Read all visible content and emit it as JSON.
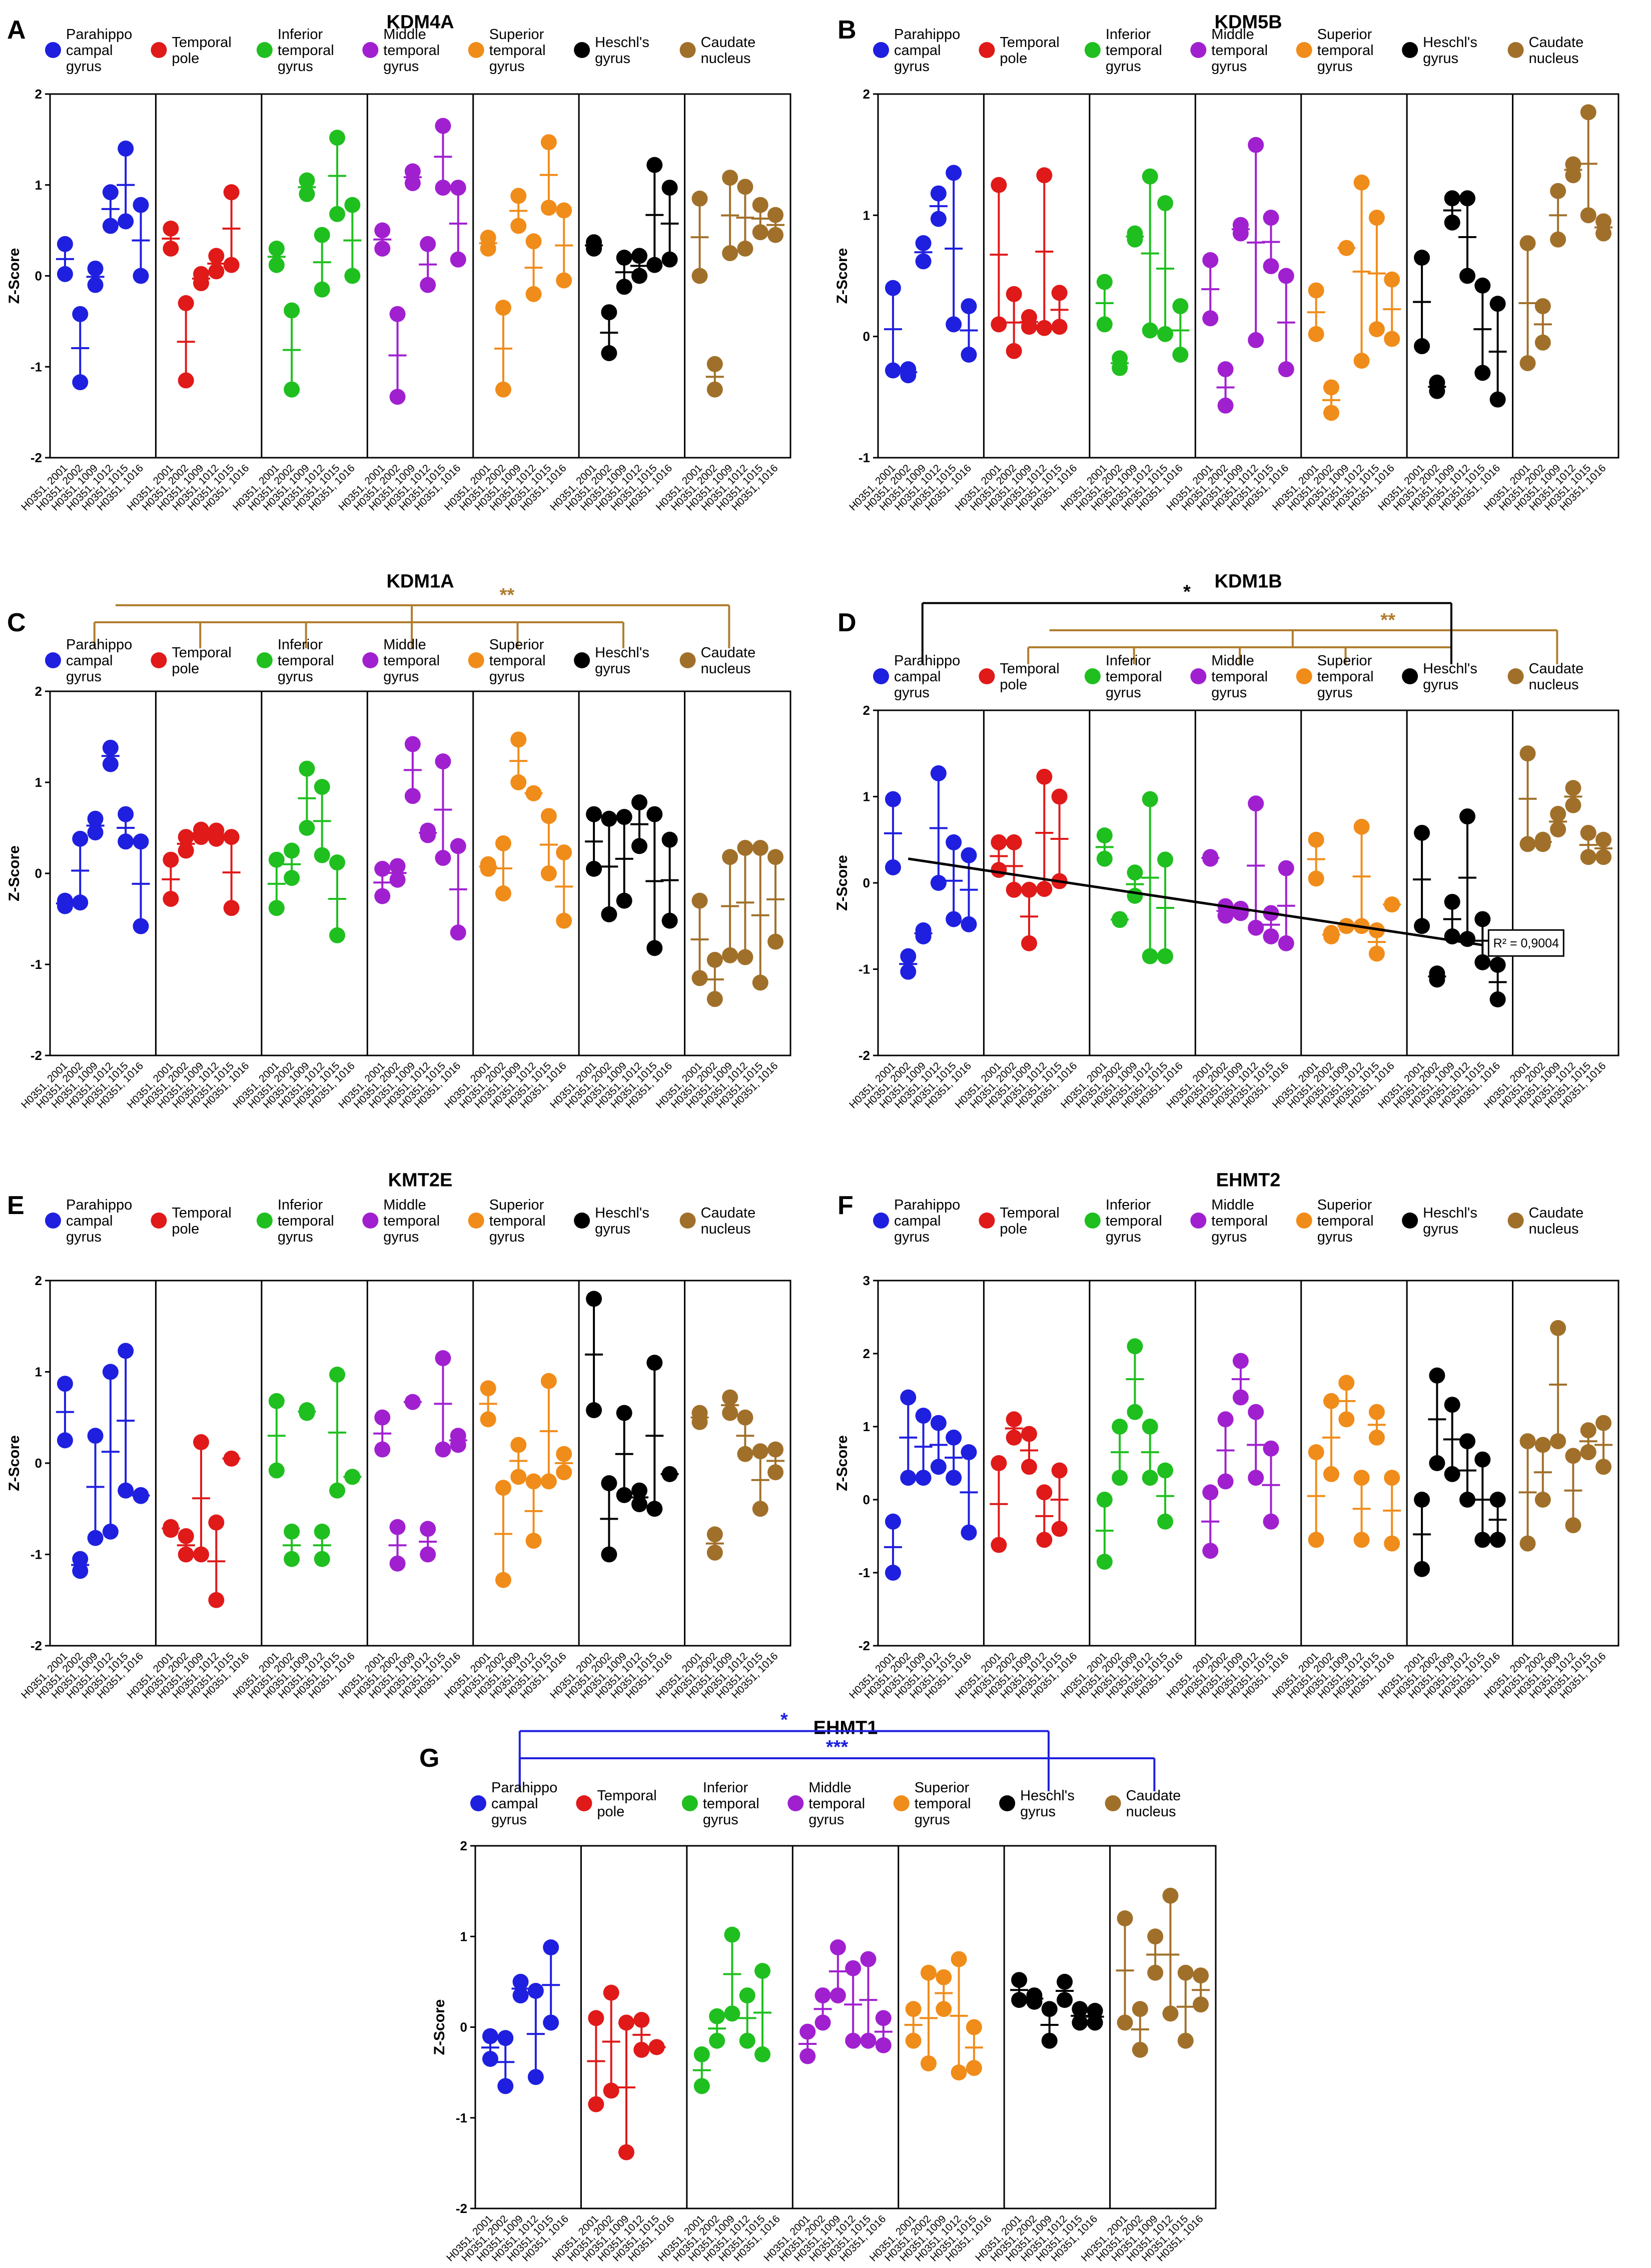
{
  "figure": {
    "y_axis_label": "Z-Score",
    "tick_labels": [
      "-2",
      "-1",
      "0",
      "1",
      "2"
    ],
    "samples": [
      "H0351, 2001",
      "H0351, 2002",
      "H0351, 1009",
      "H0351, 1012",
      "H0351, 1015",
      "H0351, 1016"
    ],
    "regions": [
      {
        "lines": [
          "Parahippo",
          "campal",
          "gyrus"
        ],
        "color": "#1f1fe0"
      },
      {
        "lines": [
          "Temporal",
          "pole"
        ],
        "color": "#e01919"
      },
      {
        "lines": [
          "Inferior",
          "temporal",
          "gyrus"
        ],
        "color": "#1fbf1f"
      },
      {
        "lines": [
          "Middle",
          "temporal",
          "gyrus"
        ],
        "color": "#a020d0"
      },
      {
        "lines": [
          "Superior",
          "temporal",
          "gyrus"
        ],
        "color": "#f08c1a"
      },
      {
        "lines": [
          "Heschl's",
          "gyrus"
        ],
        "color": "#000000"
      },
      {
        "lines": [
          "Caudate",
          "nucleus"
        ],
        "color": "#a0702a"
      }
    ]
  },
  "chart_data": [
    {
      "panel": "A",
      "title": "KDM4A",
      "type": "scatter",
      "ylabel": "Z-Score",
      "ylim": [
        -2,
        2
      ],
      "significance": [],
      "series": [
        {
          "region": "Parahippocampal gyrus",
          "values": [
            0.35,
            0.02,
            -0.42,
            -1.17,
            0.08,
            -0.1,
            0.92,
            0.55,
            1.4,
            0.6,
            0.78,
            0.0
          ]
        },
        {
          "region": "Temporal pole",
          "values": [
            0.52,
            0.3,
            -0.3,
            -1.15,
            0.02,
            -0.08,
            0.22,
            0.05,
            0.92,
            0.12
          ]
        },
        {
          "region": "Inferior temporal gyrus",
          "values": [
            0.3,
            0.12,
            -0.38,
            -1.25,
            1.05,
            0.9,
            0.45,
            -0.15,
            1.52,
            0.68,
            0.78,
            0.0
          ]
        },
        {
          "region": "Middle temporal gyrus",
          "values": [
            0.5,
            0.3,
            -0.42,
            -1.33,
            1.15,
            1.02,
            0.35,
            -0.1,
            1.65,
            0.97,
            0.97,
            0.18
          ]
        },
        {
          "region": "Superior temporal gyrus",
          "values": [
            0.42,
            0.3,
            -0.35,
            -1.25,
            0.88,
            0.55,
            0.38,
            -0.2,
            1.47,
            0.75,
            0.72,
            -0.05
          ]
        },
        {
          "region": "Heschl's gyrus",
          "values": [
            0.37,
            0.3,
            -0.4,
            -0.85,
            0.2,
            -0.12,
            0.22,
            0.0,
            1.22,
            0.12,
            0.97,
            0.18
          ]
        },
        {
          "region": "Caudate nucleus",
          "values": [
            0.85,
            0.0,
            -0.97,
            -1.25,
            1.08,
            0.25,
            0.98,
            0.3,
            0.78,
            0.48,
            0.67,
            0.45
          ]
        }
      ]
    },
    {
      "panel": "B",
      "title": "KDM5B",
      "type": "scatter",
      "ylabel": "Z-Score",
      "ylim": [
        -1,
        2
      ],
      "significance": [],
      "series": [
        {
          "region": "Parahippocampal gyrus",
          "values": [
            0.4,
            -0.28,
            -0.27,
            -0.32,
            0.77,
            0.62,
            1.18,
            0.97,
            1.35,
            0.1,
            0.25,
            -0.15
          ]
        },
        {
          "region": "Temporal pole",
          "values": [
            1.25,
            0.1,
            0.35,
            -0.12,
            0.16,
            0.08,
            1.33,
            0.07,
            0.36,
            0.08
          ]
        },
        {
          "region": "Inferior temporal gyrus",
          "values": [
            0.45,
            0.1,
            -0.18,
            -0.26,
            0.85,
            0.8,
            1.32,
            0.05,
            1.1,
            0.02,
            0.25,
            -0.15
          ]
        },
        {
          "region": "Middle temporal gyrus",
          "values": [
            0.63,
            0.15,
            -0.27,
            -0.57,
            0.92,
            0.85,
            1.58,
            -0.03,
            0.98,
            0.58,
            0.5,
            -0.27
          ]
        },
        {
          "region": "Superior temporal gyrus",
          "values": [
            0.38,
            0.02,
            -0.42,
            -0.63,
            0.73,
            0.73,
            1.27,
            -0.2,
            0.98,
            0.06,
            0.47,
            -0.02
          ]
        },
        {
          "region": "Heschl's gyrus",
          "values": [
            0.65,
            -0.08,
            -0.38,
            -0.45,
            1.14,
            0.94,
            1.14,
            0.5,
            0.42,
            -0.3,
            0.27,
            -0.52
          ]
        },
        {
          "region": "Caudate nucleus",
          "values": [
            0.77,
            -0.22,
            0.25,
            -0.05,
            1.2,
            0.8,
            1.42,
            1.33,
            1.85,
            1.0,
            0.95,
            0.85
          ]
        }
      ]
    },
    {
      "panel": "C",
      "title": "KDM1A",
      "type": "scatter",
      "ylabel": "Z-Score",
      "ylim": [
        -2,
        2
      ],
      "significance": [
        {
          "label": "**",
          "color": "#b07d2e",
          "from": 0,
          "to": 6,
          "inner": 5
        }
      ],
      "series": [
        {
          "region": "Parahippocampal gyrus",
          "values": [
            -0.3,
            -0.36,
            0.38,
            -0.32,
            0.6,
            0.45,
            1.38,
            1.2,
            0.65,
            0.35,
            0.35,
            -0.58
          ]
        },
        {
          "region": "Temporal pole",
          "values": [
            0.15,
            -0.28,
            0.4,
            0.25,
            0.48,
            0.4,
            0.47,
            0.38,
            0.4,
            -0.38
          ]
        },
        {
          "region": "Inferior temporal gyrus",
          "values": [
            0.15,
            -0.38,
            0.25,
            -0.05,
            1.15,
            0.5,
            0.95,
            0.2,
            0.12,
            -0.68
          ]
        },
        {
          "region": "Middle temporal gyrus",
          "values": [
            0.05,
            -0.25,
            0.08,
            -0.07,
            1.42,
            0.85,
            0.47,
            0.42,
            1.23,
            0.17,
            0.3,
            -0.65
          ]
        },
        {
          "region": "Superior temporal gyrus",
          "values": [
            0.1,
            0.05,
            0.33,
            -0.22,
            1.47,
            1.0,
            0.88,
            0.88,
            0.63,
            0.0,
            0.23,
            -0.52
          ]
        },
        {
          "region": "Heschl's gyrus",
          "values": [
            0.65,
            0.05,
            0.6,
            -0.45,
            0.62,
            -0.3,
            0.78,
            0.3,
            0.65,
            -0.82,
            0.37,
            -0.52
          ]
        },
        {
          "region": "Caudate nucleus",
          "values": [
            -0.3,
            -1.15,
            -0.95,
            -1.38,
            0.18,
            -0.9,
            0.28,
            -0.92,
            0.28,
            -1.2,
            0.18,
            -0.75
          ]
        }
      ]
    },
    {
      "panel": "D",
      "title": "KDM1B",
      "type": "scatter",
      "ylabel": "Z-Score",
      "ylim": [
        -2,
        2
      ],
      "significance": [
        {
          "label": "**",
          "color": "#b07d2e",
          "from": 1,
          "to": 6,
          "inner": 5
        },
        {
          "label": "*",
          "color": "#000000",
          "from": 0,
          "to": 5
        }
      ],
      "regression": {
        "from_region": 0,
        "to_region": 5,
        "start": 0.28,
        "end": -0.72,
        "label": "R² = 0,9004"
      },
      "series": [
        {
          "region": "Parahippocampal gyrus",
          "values": [
            0.97,
            0.18,
            -0.85,
            -1.03,
            -0.55,
            -0.62,
            1.27,
            0.0,
            0.47,
            -0.42,
            0.32,
            -0.48
          ]
        },
        {
          "region": "Temporal pole",
          "values": [
            0.47,
            0.15,
            0.47,
            -0.08,
            -0.08,
            -0.7,
            1.23,
            -0.07,
            1.0,
            0.02
          ]
        },
        {
          "region": "Inferior temporal gyrus",
          "values": [
            0.55,
            0.28,
            -0.42,
            -0.43,
            0.12,
            -0.15,
            0.97,
            -0.85,
            0.27,
            -0.85
          ]
        },
        {
          "region": "Middle temporal gyrus",
          "values": [
            0.3,
            0.28,
            -0.27,
            -0.38,
            -0.3,
            -0.35,
            0.92,
            -0.52,
            -0.35,
            -0.62,
            0.17,
            -0.7
          ]
        },
        {
          "region": "Superior temporal gyrus",
          "values": [
            0.5,
            0.05,
            -0.58,
            -0.62,
            -0.5,
            -0.5,
            0.65,
            -0.5,
            -0.55,
            -0.82,
            -0.25,
            -0.25
          ]
        },
        {
          "region": "Heschl's gyrus",
          "values": [
            0.58,
            -0.5,
            -1.05,
            -1.12,
            -0.22,
            -0.62,
            0.77,
            -0.65,
            -0.42,
            -0.92,
            -0.95,
            -1.35
          ]
        },
        {
          "region": "Caudate nucleus",
          "values": [
            1.5,
            0.45,
            0.5,
            0.45,
            0.8,
            0.62,
            1.1,
            0.9,
            0.58,
            0.3,
            0.5,
            0.3
          ]
        }
      ]
    },
    {
      "panel": "E",
      "title": "KMT2E",
      "type": "scatter",
      "ylabel": "Z-Score",
      "ylim": [
        -2,
        2
      ],
      "significance": [],
      "series": [
        {
          "region": "Parahippocampal gyrus",
          "values": [
            0.87,
            0.25,
            -1.05,
            -1.18,
            0.3,
            -0.82,
            1.0,
            -0.75,
            1.23,
            -0.3,
            -0.35,
            -0.36
          ]
        },
        {
          "region": "Temporal pole",
          "values": [
            -0.7,
            -0.73,
            -0.8,
            -1.0,
            0.23,
            -1.0,
            -0.65,
            -1.5,
            0.05,
            0.05
          ]
        },
        {
          "region": "Inferior temporal gyrus",
          "values": [
            0.68,
            -0.08,
            -0.75,
            -1.05,
            0.58,
            0.55,
            -0.75,
            -1.05,
            0.97,
            -0.3,
            -0.15,
            -0.15
          ]
        },
        {
          "region": "Middle temporal gyrus",
          "values": [
            0.5,
            0.15,
            -0.7,
            -1.1,
            0.67,
            0.67,
            -0.72,
            -1.0,
            1.15,
            0.15,
            0.3,
            0.2
          ]
        },
        {
          "region": "Superior temporal gyrus",
          "values": [
            0.82,
            0.48,
            -0.27,
            -1.28,
            0.2,
            -0.15,
            -0.2,
            -0.85,
            0.9,
            -0.2,
            0.1,
            -0.1
          ]
        },
        {
          "region": "Heschl's gyrus",
          "values": [
            1.8,
            0.58,
            -0.22,
            -1.0,
            0.55,
            -0.35,
            -0.3,
            -0.45,
            1.1,
            -0.5,
            -0.12,
            -0.12
          ]
        },
        {
          "region": "Caudate nucleus",
          "values": [
            0.55,
            0.45,
            -0.78,
            -0.98,
            0.72,
            0.55,
            0.5,
            0.1,
            0.13,
            -0.5,
            0.15,
            -0.1
          ]
        }
      ]
    },
    {
      "panel": "F",
      "title": "EHMT2",
      "type": "scatter",
      "ylabel": "Z-Score",
      "ylim": [
        -2,
        3
      ],
      "significance": [],
      "series": [
        {
          "region": "Parahippocampal gyrus",
          "values": [
            -0.3,
            -1.0,
            1.4,
            0.3,
            1.15,
            0.3,
            1.05,
            0.45,
            0.85,
            0.3,
            0.65,
            -0.45
          ]
        },
        {
          "region": "Temporal pole",
          "values": [
            0.5,
            -0.62,
            1.1,
            0.85,
            0.9,
            0.45,
            0.1,
            -0.55,
            0.4,
            -0.4
          ]
        },
        {
          "region": "Inferior temporal gyrus",
          "values": [
            0.0,
            -0.85,
            1.0,
            0.3,
            2.1,
            1.2,
            1.0,
            0.3,
            0.4,
            -0.3
          ]
        },
        {
          "region": "Middle temporal gyrus",
          "values": [
            0.1,
            -0.7,
            1.1,
            0.25,
            1.9,
            1.4,
            1.2,
            0.3,
            0.7,
            -0.3
          ]
        },
        {
          "region": "Superior temporal gyrus",
          "values": [
            0.65,
            -0.55,
            1.35,
            0.35,
            1.6,
            1.1,
            0.3,
            -0.55,
            1.2,
            0.85,
            0.3,
            -0.6
          ]
        },
        {
          "region": "Heschl's gyrus",
          "values": [
            0.0,
            -0.95,
            1.7,
            0.5,
            1.3,
            0.35,
            0.8,
            0.0,
            0.55,
            -0.55,
            0.0,
            -0.55
          ]
        },
        {
          "region": "Caudate nucleus",
          "values": [
            0.8,
            -0.6,
            0.75,
            0.0,
            2.35,
            0.8,
            0.6,
            -0.35,
            0.95,
            0.65,
            1.05,
            0.45
          ]
        }
      ]
    },
    {
      "panel": "G",
      "title": "EHMT1",
      "type": "scatter",
      "ylabel": "Z-Score",
      "ylim": [
        -2,
        2
      ],
      "significance": [
        {
          "label": "***",
          "color": "#1f1fe0",
          "from": 0,
          "to": 6
        },
        {
          "label": "*",
          "color": "#1f1fe0",
          "from": 0,
          "to": 5
        }
      ],
      "series": [
        {
          "region": "Parahippocampal gyrus",
          "values": [
            -0.1,
            -0.35,
            -0.12,
            -0.65,
            0.5,
            0.35,
            0.4,
            -0.55,
            0.88,
            0.05
          ]
        },
        {
          "region": "Temporal pole",
          "values": [
            0.1,
            -0.85,
            0.38,
            -0.7,
            0.05,
            -1.38,
            0.08,
            -0.25,
            -0.22,
            -0.22
          ]
        },
        {
          "region": "Inferior temporal gyrus",
          "values": [
            -0.3,
            -0.65,
            0.12,
            -0.15,
            1.02,
            0.15,
            0.35,
            -0.15,
            0.62,
            -0.3
          ]
        },
        {
          "region": "Middle temporal gyrus",
          "values": [
            -0.05,
            -0.32,
            0.35,
            0.05,
            0.88,
            0.35,
            0.65,
            -0.15,
            0.75,
            -0.15,
            0.1,
            -0.2
          ]
        },
        {
          "region": "Superior temporal gyrus",
          "values": [
            0.2,
            -0.15,
            0.6,
            -0.4,
            0.55,
            0.2,
            0.75,
            -0.5,
            0.0,
            -0.45
          ]
        },
        {
          "region": "Heschl's gyrus",
          "values": [
            0.52,
            0.3,
            0.35,
            0.28,
            0.2,
            -0.15,
            0.5,
            0.3,
            0.2,
            0.05,
            0.18,
            0.05
          ]
        },
        {
          "region": "Caudate nucleus",
          "values": [
            1.2,
            0.05,
            0.2,
            -0.25,
            1.0,
            0.6,
            1.45,
            0.15,
            0.6,
            -0.15,
            0.57,
            0.25
          ]
        }
      ]
    }
  ]
}
